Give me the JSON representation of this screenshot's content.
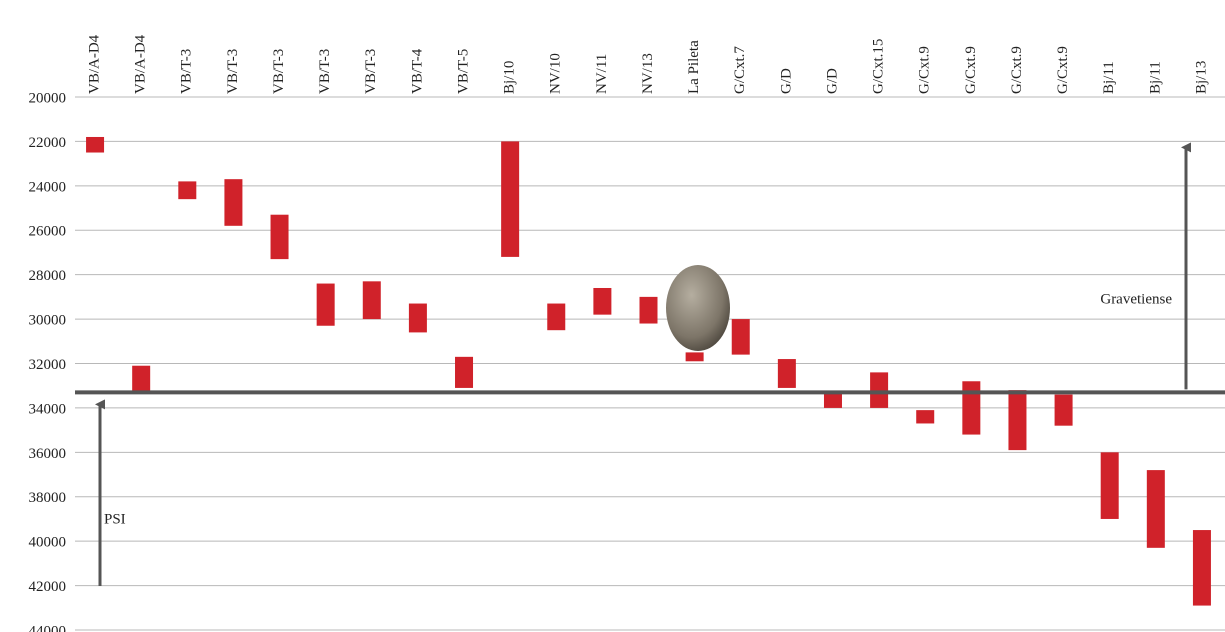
{
  "chart_data": {
    "type": "range_bar",
    "categories": [
      "VB/A-D4",
      "VB/A-D4",
      "VB/T-3",
      "VB/T-3",
      "VB/T-3",
      "VB/T-3",
      "VB/T-3",
      "VB/T-4",
      "VB/T-5",
      "Bj/10",
      "NV/10",
      "NV/11",
      "NV/13",
      "La Pileta",
      "G/Cxt.7",
      "G/D",
      "G/D",
      "G/Cxt.15",
      "G/Cxt.9",
      "G/Cxt.9",
      "G/Cxt.9",
      "G/Cxt.9",
      "Bj/11",
      "Bj/11",
      "Bj/13"
    ],
    "values": [
      [
        21800,
        22500
      ],
      [
        32100,
        33300
      ],
      [
        23800,
        24600
      ],
      [
        23700,
        25800
      ],
      [
        25300,
        27300
      ],
      [
        28400,
        30300
      ],
      [
        28300,
        30000
      ],
      [
        29300,
        30600
      ],
      [
        31700,
        33100
      ],
      [
        22000,
        27200
      ],
      [
        29300,
        30500
      ],
      [
        28600,
        29800
      ],
      [
        29000,
        30200
      ],
      [
        31500,
        31900
      ],
      [
        30000,
        31600
      ],
      [
        31800,
        33100
      ],
      [
        33300,
        34000
      ],
      [
        32400,
        34000
      ],
      [
        34100,
        34700
      ],
      [
        32800,
        35200
      ],
      [
        33200,
        35900
      ],
      [
        33400,
        34800
      ],
      [
        36000,
        39000
      ],
      [
        36800,
        40300
      ],
      [
        39500,
        42900
      ]
    ],
    "color": "#d0222a",
    "ylim": [
      20000,
      44000
    ],
    "yticks": [
      20000,
      22000,
      24000,
      26000,
      28000,
      30000,
      32000,
      34000,
      36000,
      38000,
      40000,
      42000,
      44000
    ],
    "grid": true,
    "divider": 33300,
    "annotations": [
      "PSI",
      "Gravetiense"
    ]
  }
}
